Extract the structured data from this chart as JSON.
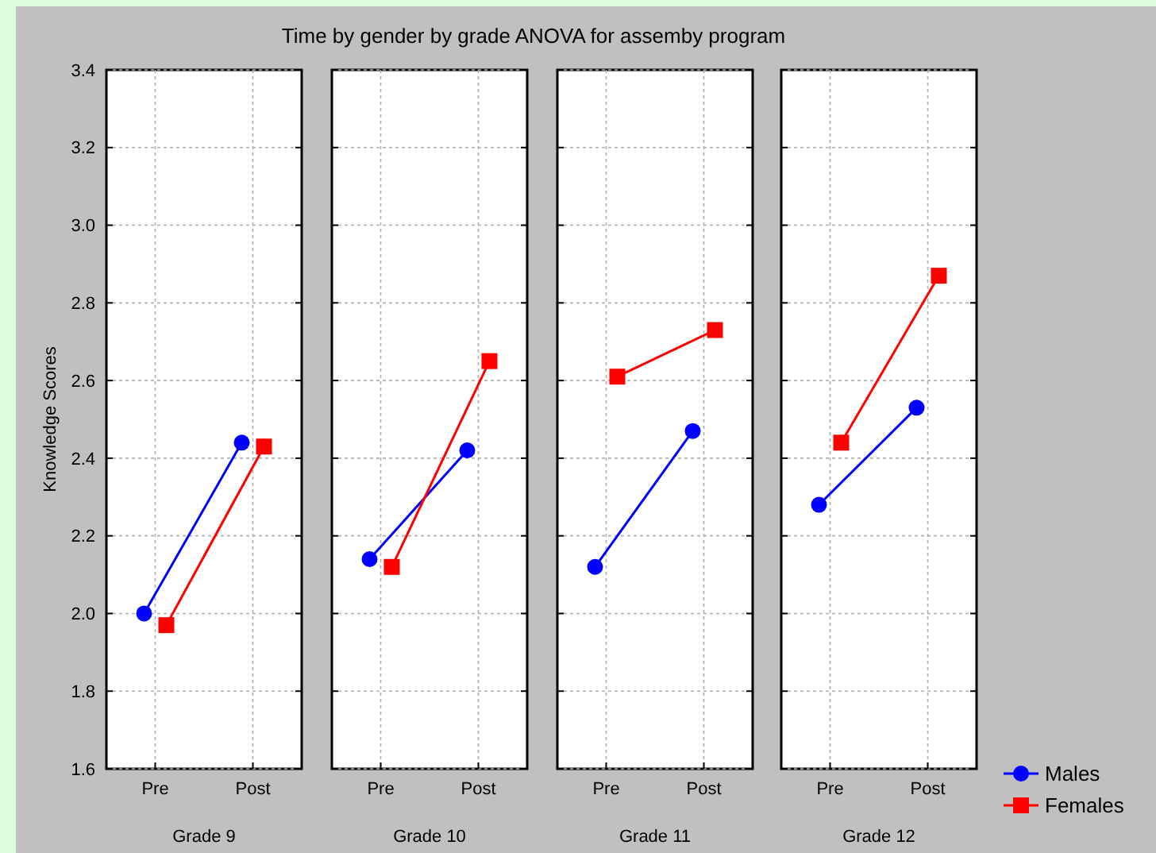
{
  "chart_data": [
    {
      "type": "line",
      "title": "Time by gender by grade ANOVA for assemby program",
      "ylabel": "Knowledge Scores",
      "xlabel": "Grade 9",
      "categories": [
        "Pre",
        "Post"
      ],
      "ylim": [
        1.6,
        3.4
      ],
      "yticks": [
        1.6,
        1.8,
        {
          "value": 2,
          "label": "2.0"
        },
        2.2,
        2.4,
        2.6,
        2.8,
        {
          "value": 3,
          "label": "3.0"
        },
        3.2,
        3.4
      ],
      "grid": true,
      "series": [
        {
          "color": "#0000ff",
          "marker": "circle",
          "values": [
            2.0,
            2.44
          ]
        },
        {
          "color": "#ff0000",
          "marker": "square",
          "values": [
            1.97,
            2.43
          ]
        }
      ]
    },
    {
      "type": "line",
      "xlabel": "Grade 10",
      "categories": [
        "Pre",
        "Post"
      ],
      "ylim": [
        1.6,
        3.4
      ],
      "tick_labels": "x",
      "grid": true,
      "series": [
        {
          "color": "#0000ff",
          "marker": "circle",
          "values": [
            2.14,
            2.42
          ]
        },
        {
          "color": "#ff0000",
          "marker": "square",
          "values": [
            2.12,
            2.65
          ]
        }
      ]
    },
    {
      "type": "line",
      "xlabel": "Grade 11",
      "categories": [
        "Pre",
        "Post"
      ],
      "ylim": [
        1.6,
        3.4
      ],
      "tick_labels": "x",
      "grid": true,
      "series": [
        {
          "color": "#0000ff",
          "marker": "circle",
          "values": [
            2.12,
            2.47
          ]
        },
        {
          "color": "#ff0000",
          "marker": "square",
          "values": [
            2.61,
            2.73
          ]
        }
      ]
    },
    {
      "type": "line",
      "xlabel": "Grade 12",
      "categories": [
        "Pre",
        "Post"
      ],
      "ylim": [
        1.6,
        3.4
      ],
      "tick_labels": "x",
      "grid": true,
      "legend": "bottom right",
      "series": [
        {
          "name": "Males",
          "color": "#0000ff",
          "marker": "circle",
          "values": [
            2.28,
            2.53
          ]
        },
        {
          "name": "Females",
          "color": "#ff0000",
          "marker": "square",
          "values": [
            2.44,
            2.87
          ]
        }
      ]
    }
  ]
}
